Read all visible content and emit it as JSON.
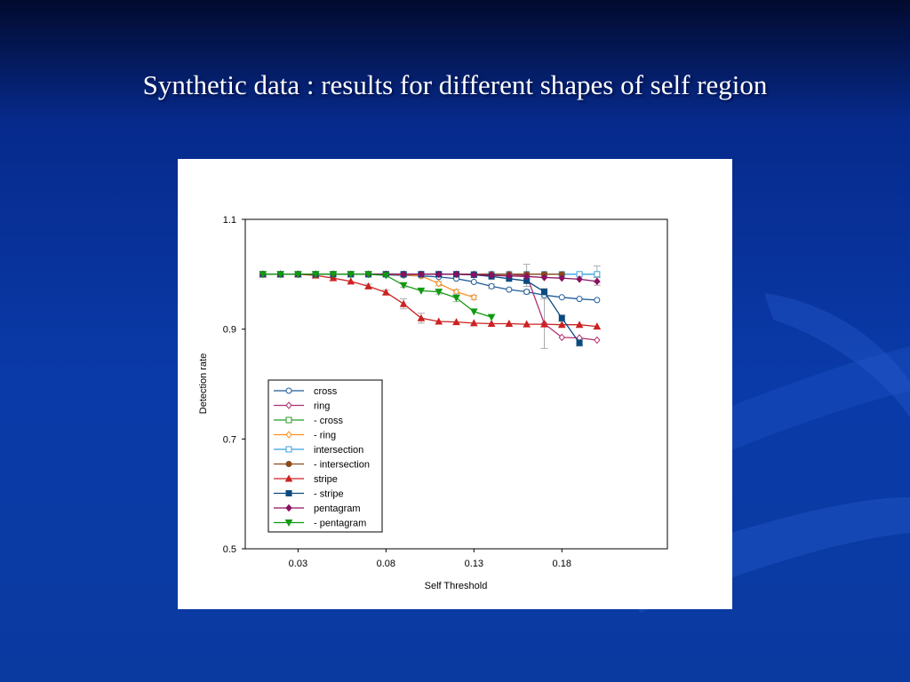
{
  "slide": {
    "title": "Synthetic data : results for different shapes of self region"
  },
  "chart_data": {
    "type": "line",
    "title": "",
    "xlabel": "Self Threshold",
    "ylabel": "Detection rate",
    "xlim": [
      0.0,
      0.24
    ],
    "ylim": [
      0.5,
      1.1
    ],
    "x_ticks": [
      0.03,
      0.08,
      0.13,
      0.18
    ],
    "x_tick_labels": [
      "0.03",
      "0.08",
      "0.13",
      "0.18"
    ],
    "y_ticks": [
      0.5,
      0.7,
      0.9,
      1.1
    ],
    "y_tick_labels": [
      "0.5",
      "0.7",
      "0.9",
      "1.1"
    ],
    "grid": false,
    "legend_position": "lower-left",
    "series": [
      {
        "name": "cross",
        "color": "#1f5c99",
        "marker": "circle-open",
        "x": [
          0.01,
          0.02,
          0.03,
          0.04,
          0.05,
          0.06,
          0.07,
          0.08,
          0.09,
          0.1,
          0.11,
          0.12,
          0.13,
          0.14,
          0.15,
          0.16,
          0.17,
          0.18,
          0.19,
          0.2
        ],
        "y": [
          1.0,
          1.0,
          1.0,
          1.0,
          1.0,
          1.0,
          1.0,
          0.999,
          0.998,
          0.997,
          0.995,
          0.992,
          0.986,
          0.978,
          0.972,
          0.968,
          0.962,
          0.958,
          0.955,
          0.953
        ],
        "err": [
          0,
          0,
          0,
          0,
          0,
          0,
          0,
          0,
          0,
          0,
          0,
          0,
          0,
          0.004,
          0,
          0.004,
          0.004,
          0,
          0,
          0
        ]
      },
      {
        "name": "ring",
        "color": "#b03070",
        "marker": "diamond-open",
        "x": [
          0.01,
          0.02,
          0.03,
          0.04,
          0.05,
          0.06,
          0.07,
          0.08,
          0.09,
          0.1,
          0.11,
          0.12,
          0.13,
          0.14,
          0.15,
          0.16,
          0.17,
          0.18,
          0.19,
          0.2
        ],
        "y": [
          1.0,
          1.0,
          1.0,
          1.0,
          1.0,
          1.0,
          1.0,
          1.0,
          1.0,
          1.0,
          1.0,
          1.0,
          1.0,
          1.0,
          1.0,
          0.998,
          0.91,
          0.885,
          0.884,
          0.88
        ],
        "err": [
          0,
          0,
          0,
          0,
          0,
          0,
          0,
          0,
          0,
          0,
          0,
          0,
          0,
          0,
          0,
          0.02,
          0.045,
          0,
          0,
          0
        ]
      },
      {
        "name": "- cross",
        "color": "#2a9a2a",
        "marker": "square-open",
        "x": [
          0.01,
          0.02,
          0.03,
          0.04,
          0.05,
          0.06,
          0.07,
          0.08,
          0.09,
          0.1,
          0.11,
          0.12
        ],
        "y": [
          1.0,
          1.0,
          1.0,
          1.0,
          1.0,
          1.0,
          1.0,
          1.0,
          1.0,
          1.0,
          1.0,
          1.0
        ],
        "err": [
          0,
          0,
          0,
          0,
          0,
          0,
          0,
          0,
          0,
          0,
          0,
          0
        ]
      },
      {
        "name": "- ring",
        "color": "#ff9020",
        "marker": "diamond-open",
        "x": [
          0.01,
          0.02,
          0.03,
          0.04,
          0.05,
          0.06,
          0.07,
          0.08,
          0.09,
          0.1,
          0.11,
          0.12,
          0.13
        ],
        "y": [
          1.0,
          1.0,
          1.0,
          1.0,
          1.0,
          1.0,
          1.0,
          1.0,
          0.999,
          0.997,
          0.983,
          0.968,
          0.958
        ],
        "err": [
          0,
          0,
          0,
          0,
          0,
          0,
          0,
          0,
          0,
          0,
          0.004,
          0.004,
          0.004
        ]
      },
      {
        "name": "intersection",
        "color": "#3aa0e0",
        "marker": "square-open",
        "x": [
          0.01,
          0.02,
          0.03,
          0.04,
          0.05,
          0.06,
          0.07,
          0.08,
          0.09,
          0.1,
          0.11,
          0.12,
          0.13,
          0.14,
          0.15,
          0.16,
          0.17,
          0.18,
          0.19,
          0.2
        ],
        "y": [
          1.0,
          1.0,
          1.0,
          1.0,
          1.0,
          1.0,
          1.0,
          1.0,
          1.0,
          1.0,
          1.0,
          1.0,
          1.0,
          1.0,
          1.0,
          1.0,
          1.0,
          1.0,
          1.0,
          1.0
        ],
        "err": [
          0,
          0,
          0,
          0,
          0,
          0,
          0,
          0,
          0,
          0,
          0,
          0,
          0,
          0,
          0,
          0,
          0,
          0,
          0,
          0.015
        ]
      },
      {
        "name": "- intersection",
        "color": "#8a4a1a",
        "marker": "circle",
        "x": [
          0.01,
          0.02,
          0.03,
          0.04,
          0.05,
          0.06,
          0.07,
          0.08,
          0.09,
          0.1,
          0.11,
          0.12,
          0.13,
          0.14,
          0.15,
          0.16,
          0.17,
          0.18
        ],
        "y": [
          1.0,
          1.0,
          1.0,
          1.0,
          1.0,
          1.0,
          1.0,
          1.0,
          1.0,
          1.0,
          1.0,
          1.0,
          1.0,
          1.0,
          1.0,
          1.0,
          1.0,
          1.0
        ],
        "err": [
          0,
          0,
          0,
          0,
          0,
          0,
          0,
          0,
          0,
          0,
          0,
          0,
          0,
          0,
          0,
          0,
          0,
          0
        ]
      },
      {
        "name": "stripe",
        "color": "#cc2222",
        "marker": "triangle-up",
        "x": [
          0.01,
          0.02,
          0.03,
          0.04,
          0.05,
          0.06,
          0.07,
          0.08,
          0.09,
          0.1,
          0.11,
          0.12,
          0.13,
          0.14,
          0.15,
          0.16,
          0.17,
          0.18,
          0.19,
          0.2
        ],
        "y": [
          1.0,
          1.0,
          1.0,
          0.998,
          0.993,
          0.987,
          0.978,
          0.967,
          0.946,
          0.92,
          0.914,
          0.913,
          0.911,
          0.91,
          0.91,
          0.909,
          0.909,
          0.908,
          0.908,
          0.905
        ],
        "err": [
          0,
          0,
          0,
          0,
          0,
          0,
          0.004,
          0.004,
          0.009,
          0.009,
          0,
          0,
          0,
          0,
          0,
          0,
          0,
          0,
          0,
          0
        ]
      },
      {
        "name": "- stripe",
        "color": "#0a4a80",
        "marker": "square",
        "x": [
          0.01,
          0.02,
          0.03,
          0.04,
          0.05,
          0.06,
          0.07,
          0.08,
          0.09,
          0.1,
          0.11,
          0.12,
          0.13,
          0.14,
          0.15,
          0.16,
          0.17,
          0.18,
          0.19
        ],
        "y": [
          1.0,
          1.0,
          1.0,
          1.0,
          1.0,
          1.0,
          1.0,
          1.0,
          1.0,
          1.0,
          1.0,
          1.0,
          0.999,
          0.996,
          0.992,
          0.988,
          0.968,
          0.92,
          0.875
        ],
        "err": [
          0,
          0,
          0,
          0,
          0,
          0,
          0,
          0,
          0,
          0,
          0,
          0,
          0,
          0,
          0,
          0.004,
          0.006,
          0.006,
          0.006
        ]
      },
      {
        "name": "pentagram",
        "color": "#8a1060",
        "marker": "diamond",
        "x": [
          0.01,
          0.02,
          0.03,
          0.04,
          0.05,
          0.06,
          0.07,
          0.08,
          0.09,
          0.1,
          0.11,
          0.12,
          0.13,
          0.14,
          0.15,
          0.16,
          0.17,
          0.18,
          0.19,
          0.2
        ],
        "y": [
          1.0,
          1.0,
          1.0,
          1.0,
          1.0,
          1.0,
          1.0,
          1.0,
          1.0,
          1.0,
          1.0,
          1.0,
          0.999,
          0.998,
          0.997,
          0.996,
          0.994,
          0.993,
          0.991,
          0.987
        ],
        "err": [
          0,
          0,
          0,
          0,
          0,
          0,
          0,
          0,
          0,
          0,
          0,
          0,
          0,
          0,
          0,
          0,
          0,
          0,
          0,
          0.007
        ]
      },
      {
        "name": "- pentagram",
        "color": "#109a10",
        "marker": "triangle-down",
        "x": [
          0.01,
          0.02,
          0.03,
          0.04,
          0.05,
          0.06,
          0.07,
          0.08,
          0.09,
          0.1,
          0.11,
          0.12,
          0.13,
          0.14
        ],
        "y": [
          1.0,
          1.0,
          1.0,
          1.0,
          1.0,
          1.0,
          1.0,
          0.998,
          0.98,
          0.97,
          0.968,
          0.957,
          0.932,
          0.922
        ],
        "err": [
          0,
          0,
          0,
          0,
          0,
          0,
          0,
          0,
          0.004,
          0,
          0.004,
          0.007,
          0,
          0
        ]
      }
    ]
  }
}
